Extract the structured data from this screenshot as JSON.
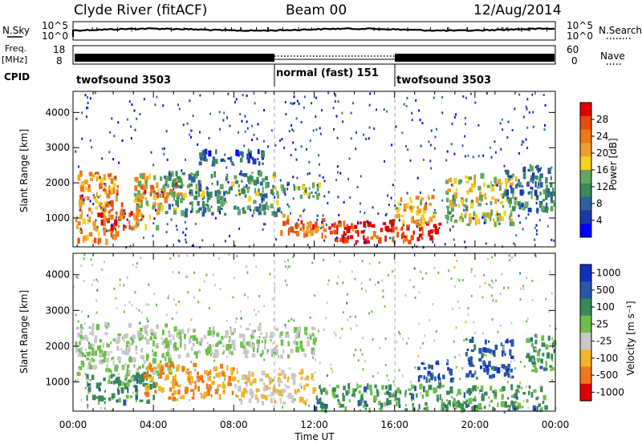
{
  "header": {
    "station": "Clyde River (fitACF)",
    "beam": "Beam 00",
    "date": "12/Aug/2014"
  },
  "noise_panel": {
    "left_label": "N.Sky",
    "right_label": "N.Search",
    "ticks": [
      "10^5",
      "10^0"
    ]
  },
  "freq_panel": {
    "left_label_1": "Freq.",
    "left_label_2": "[MHz]",
    "left_ticks": [
      "18",
      "8"
    ],
    "right_label": "Nave",
    "right_ticks": [
      "60",
      "0"
    ]
  },
  "cpid_panel": {
    "label": "CPID",
    "segments": [
      {
        "name": "twofsound 3503",
        "start_h": 0,
        "end_h": 10
      },
      {
        "name": "normal (fast) 151",
        "start_h": 10,
        "end_h": 16
      },
      {
        "name": "twofsound 3503",
        "start_h": 16,
        "end_h": 24
      }
    ]
  },
  "x_axis": {
    "label": "Time UT",
    "ticks": [
      "00:00",
      "04:00",
      "08:00",
      "12:00",
      "16:00",
      "20:00",
      "00:00"
    ]
  },
  "chart_data": [
    {
      "type": "heatmap",
      "parameter": "power",
      "ylabel": "Slant Range [km]",
      "yticks": [
        1000,
        2000,
        3000,
        4000
      ],
      "ylim": [
        180,
        4600
      ],
      "xlim": [
        0,
        24
      ],
      "colorbar": {
        "label": "Power [dB]",
        "ticks": [
          "4",
          "8",
          "12",
          "16",
          "20",
          "24",
          "28"
        ],
        "colors": [
          "#0000ff",
          "#1a3aa8",
          "#3060a0",
          "#3a8a5a",
          "#5fa860",
          "#f5d21e",
          "#f0a028",
          "#f07818",
          "#e84a10",
          "#e00000"
        ]
      },
      "regions": [
        {
          "t0": 0.1,
          "t1": 2.2,
          "r0": 300,
          "r1": 2300,
          "level": 0.72
        },
        {
          "t0": 1.2,
          "t1": 3.2,
          "r0": 700,
          "r1": 1400,
          "level": 0.85
        },
        {
          "t0": 3.0,
          "t1": 4.6,
          "r0": 700,
          "r1": 2200,
          "level": 0.6
        },
        {
          "t0": 3.3,
          "t1": 5.4,
          "r0": 1500,
          "r1": 2000,
          "level": 0.78
        },
        {
          "t0": 4.5,
          "t1": 10.2,
          "r0": 1100,
          "r1": 2300,
          "level": 0.35
        },
        {
          "t0": 6.0,
          "t1": 9.5,
          "r0": 2500,
          "r1": 2900,
          "level": 0.2
        },
        {
          "t0": 10.0,
          "t1": 12.2,
          "r0": 1600,
          "r1": 2000,
          "level": 0.45
        },
        {
          "t0": 10.2,
          "t1": 12.5,
          "r0": 500,
          "r1": 1100,
          "level": 0.78
        },
        {
          "t0": 12.5,
          "t1": 18.2,
          "r0": 300,
          "r1": 900,
          "level": 0.95
        },
        {
          "t0": 16.0,
          "t1": 18.0,
          "r0": 800,
          "r1": 1600,
          "level": 0.62
        },
        {
          "t0": 18.5,
          "t1": 22.0,
          "r0": 800,
          "r1": 2200,
          "level": 0.55
        },
        {
          "t0": 21.5,
          "t1": 23.9,
          "r0": 1200,
          "r1": 2500,
          "level": 0.3
        }
      ]
    },
    {
      "type": "heatmap",
      "parameter": "velocity",
      "ylabel": "Slant Range [km]",
      "yticks": [
        1000,
        2000,
        3000,
        4000
      ],
      "ylim": [
        180,
        4600
      ],
      "xlim": [
        0,
        24
      ],
      "colorbar": {
        "label": "Velocity [m s⁻¹]",
        "ticks": [
          "1000",
          "500",
          "100",
          "25",
          "-25",
          "-100",
          "-500",
          "-1000"
        ],
        "colors": [
          "#1030c0",
          "#2858a8",
          "#3a8858",
          "#6cc048",
          "#c8c8c8",
          "#f5b428",
          "#f07818",
          "#e00000"
        ]
      },
      "regions": [
        {
          "t0": 0.1,
          "t1": 5.0,
          "r0": 1200,
          "r1": 2600,
          "level": 0.5
        },
        {
          "t0": 5.0,
          "t1": 12.0,
          "r0": 1700,
          "r1": 2500,
          "level": 0.5
        },
        {
          "t0": 0.5,
          "t1": 4.0,
          "r0": 400,
          "r1": 1200,
          "level": 0.3
        },
        {
          "t0": 3.5,
          "t1": 8.0,
          "r0": 500,
          "r1": 1500,
          "level": 0.78
        },
        {
          "t0": 8.0,
          "t1": 12.0,
          "r0": 400,
          "r1": 1300,
          "level": 0.65
        },
        {
          "t0": 12.0,
          "t1": 23.5,
          "r0": 200,
          "r1": 900,
          "level": 0.3
        },
        {
          "t0": 17.0,
          "t1": 18.8,
          "r0": 1000,
          "r1": 1600,
          "level": 0.1
        },
        {
          "t0": 19.5,
          "t1": 21.8,
          "r0": 1100,
          "r1": 2200,
          "level": 0.1
        },
        {
          "t0": 22.5,
          "t1": 23.9,
          "r0": 1300,
          "r1": 2300,
          "level": 0.3
        }
      ]
    }
  ]
}
